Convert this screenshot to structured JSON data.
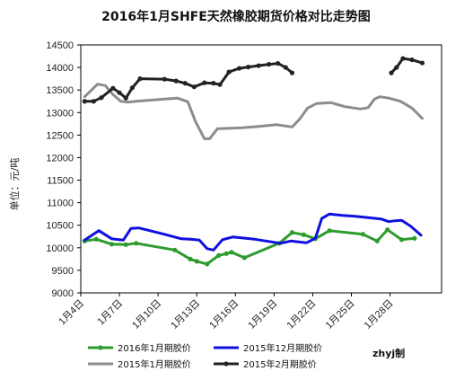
{
  "chart_data": {
    "type": "line",
    "title": "2016年1月SHFE天然橡胶期货价格对比走势图",
    "ylabel": "单位：元/吨",
    "xlabel": "",
    "ylim": [
      9000,
      14500
    ],
    "yticks": [
      9000,
      9500,
      10000,
      10500,
      11000,
      11500,
      12000,
      12500,
      13000,
      13500,
      14000,
      14500
    ],
    "x_range": [
      4,
      32
    ],
    "xticks": [
      {
        "x": 4,
        "label": "1月4日"
      },
      {
        "x": 7,
        "label": "1月7日"
      },
      {
        "x": 10,
        "label": "1月10日"
      },
      {
        "x": 13,
        "label": "1月13日"
      },
      {
        "x": 16,
        "label": "1月16日"
      },
      {
        "x": 19,
        "label": "1月19日"
      },
      {
        "x": 22,
        "label": "1月22日"
      },
      {
        "x": 25,
        "label": "1月25日"
      },
      {
        "x": 28,
        "label": "1月28日"
      }
    ],
    "grid": false,
    "legend_position": "bottom",
    "credit": "zhyj制",
    "series": [
      {
        "name": "2016年1月期胶价",
        "color": "#2e9b2e",
        "marker": "circle",
        "points": [
          [
            4.3,
            10150
          ],
          [
            5.2,
            10190
          ],
          [
            6.4,
            10080
          ],
          [
            7.5,
            10070
          ],
          [
            8.3,
            10100
          ],
          [
            11.3,
            9950
          ],
          [
            12.5,
            9750
          ],
          [
            13.0,
            9700
          ],
          [
            13.8,
            9640
          ],
          [
            14.7,
            9830
          ],
          [
            15.3,
            9870
          ],
          [
            15.7,
            9900
          ],
          [
            16.7,
            9780
          ],
          [
            19.4,
            10100
          ],
          [
            20.4,
            10340
          ],
          [
            21.3,
            10290
          ],
          [
            22.2,
            10200
          ],
          [
            23.3,
            10380
          ],
          [
            25.9,
            10300
          ],
          [
            27.0,
            10150
          ],
          [
            27.8,
            10400
          ],
          [
            28.9,
            10180
          ],
          [
            29.9,
            10210
          ]
        ]
      },
      {
        "name": "2015年12月期胶价",
        "color": "#1010e0",
        "marker": "none",
        "points": [
          [
            4.3,
            10170
          ],
          [
            5.4,
            10380
          ],
          [
            6.4,
            10200
          ],
          [
            7.3,
            10170
          ],
          [
            7.9,
            10430
          ],
          [
            8.5,
            10440
          ],
          [
            10.5,
            10300
          ],
          [
            11.8,
            10200
          ],
          [
            12.5,
            10190
          ],
          [
            13.2,
            10170
          ],
          [
            13.8,
            9980
          ],
          [
            14.3,
            9950
          ],
          [
            15.0,
            10180
          ],
          [
            15.8,
            10240
          ],
          [
            17.5,
            10190
          ],
          [
            19.5,
            10100
          ],
          [
            20.3,
            10150
          ],
          [
            21.5,
            10110
          ],
          [
            22.2,
            10210
          ],
          [
            22.7,
            10650
          ],
          [
            23.3,
            10750
          ],
          [
            24.3,
            10720
          ],
          [
            25.3,
            10700
          ],
          [
            26.3,
            10670
          ],
          [
            27.3,
            10640
          ],
          [
            27.9,
            10580
          ],
          [
            28.4,
            10600
          ],
          [
            28.9,
            10610
          ],
          [
            29.6,
            10480
          ],
          [
            30.4,
            10280
          ]
        ]
      },
      {
        "name": "2015年1月期胶价",
        "color": "#8c8c8c",
        "marker": "none",
        "points": [
          [
            4.3,
            13350
          ],
          [
            5.3,
            13630
          ],
          [
            5.9,
            13600
          ],
          [
            6.5,
            13400
          ],
          [
            7.1,
            13250
          ],
          [
            7.6,
            13230
          ],
          [
            8.3,
            13250
          ],
          [
            10.5,
            13300
          ],
          [
            11.5,
            13320
          ],
          [
            12.3,
            13240
          ],
          [
            12.9,
            12800
          ],
          [
            13.6,
            12420
          ],
          [
            14.0,
            12420
          ],
          [
            14.6,
            12640
          ],
          [
            16.5,
            12660
          ],
          [
            17.8,
            12690
          ],
          [
            19.2,
            12730
          ],
          [
            20.4,
            12680
          ],
          [
            21.0,
            12860
          ],
          [
            21.6,
            13100
          ],
          [
            22.3,
            13200
          ],
          [
            23.4,
            13220
          ],
          [
            24.5,
            13130
          ],
          [
            25.7,
            13080
          ],
          [
            26.3,
            13110
          ],
          [
            26.8,
            13300
          ],
          [
            27.2,
            13350
          ],
          [
            27.9,
            13320
          ],
          [
            28.8,
            13250
          ],
          [
            29.7,
            13100
          ],
          [
            30.5,
            12870
          ]
        ]
      },
      {
        "name": "2015年2月期胶价",
        "color": "#222222",
        "marker": "circle",
        "segments": [
          [
            [
              4.3,
              13250
            ],
            [
              5.0,
              13250
            ],
            [
              5.6,
              13330
            ],
            [
              6.5,
              13540
            ],
            [
              7.0,
              13440
            ],
            [
              7.5,
              13320
            ],
            [
              8.0,
              13550
            ],
            [
              8.6,
              13750
            ],
            [
              10.5,
              13740
            ],
            [
              11.4,
              13700
            ],
            [
              12.1,
              13650
            ],
            [
              12.8,
              13570
            ],
            [
              13.6,
              13660
            ],
            [
              14.3,
              13650
            ],
            [
              14.8,
              13620
            ],
            [
              15.5,
              13900
            ],
            [
              16.3,
              13980
            ],
            [
              17.0,
              14010
            ],
            [
              17.8,
              14040
            ],
            [
              18.6,
              14070
            ],
            [
              19.3,
              14090
            ],
            [
              19.9,
              14000
            ],
            [
              20.4,
              13880
            ]
          ],
          [
            [
              28.1,
              13880
            ],
            [
              28.5,
              14000
            ],
            [
              29.0,
              14200
            ],
            [
              29.7,
              14170
            ],
            [
              30.5,
              14100
            ]
          ]
        ]
      }
    ]
  }
}
